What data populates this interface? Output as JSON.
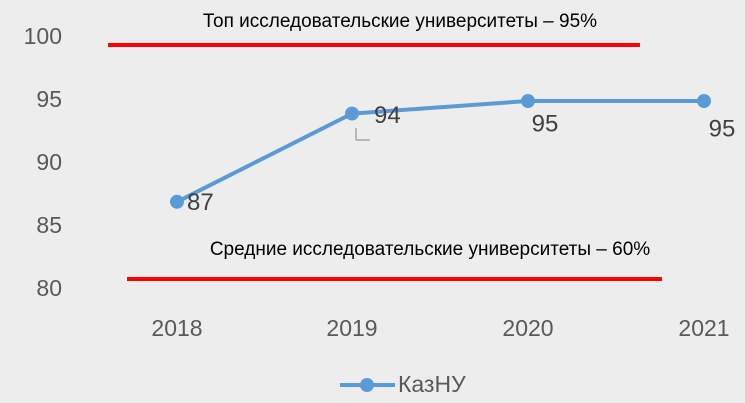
{
  "chart_data": {
    "type": "line",
    "categories": [
      "2018",
      "2019",
      "2020",
      "2021"
    ],
    "series": [
      {
        "name": "КазНУ",
        "color": "#5b9bd5",
        "values": [
          87,
          94,
          95,
          95
        ]
      }
    ],
    "ylim": [
      80,
      100
    ],
    "yticks": [
      80,
      85,
      90,
      95,
      100
    ],
    "grid": false,
    "legend": "bottom",
    "annotations": [
      "Топ исследовательские университеты – 95%",
      "Средние исследовательские университеты – 60%"
    ]
  }
}
